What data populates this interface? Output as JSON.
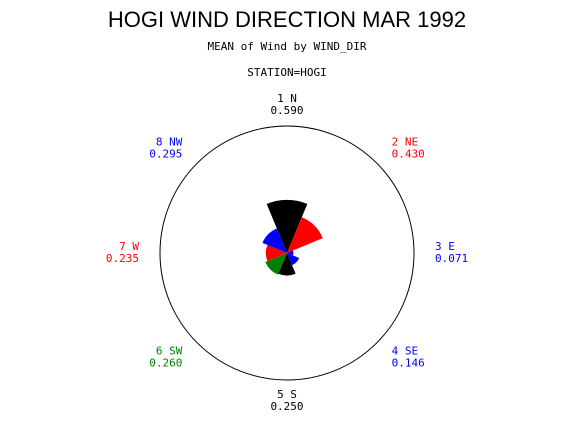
{
  "chart_data": {
    "type": "star",
    "title": "HOGI WIND DIRECTION MAR 1992",
    "subtitle": "MEAN of Wind by WIND_DIR",
    "group_label": "STATION=HOGI",
    "categories": [
      "1 N",
      "2 NE",
      "3 E",
      "4 SE",
      "5 S",
      "6 SW",
      "7 W",
      "8 NW"
    ],
    "values": [
      0.59,
      0.43,
      0.071,
      0.146,
      0.25,
      0.26,
      0.235,
      0.295
    ],
    "value_labels": [
      "0.590",
      "0.430",
      "0.071",
      "0.146",
      "0.250",
      "0.260",
      "0.235",
      "0.295"
    ],
    "colors": [
      "#000000",
      "#ff0000",
      "#0000ff",
      "#0000ff",
      "#000000",
      "#008000",
      "#ff0000",
      "#0000ff"
    ],
    "rlim": [
      0,
      1.41
    ]
  }
}
